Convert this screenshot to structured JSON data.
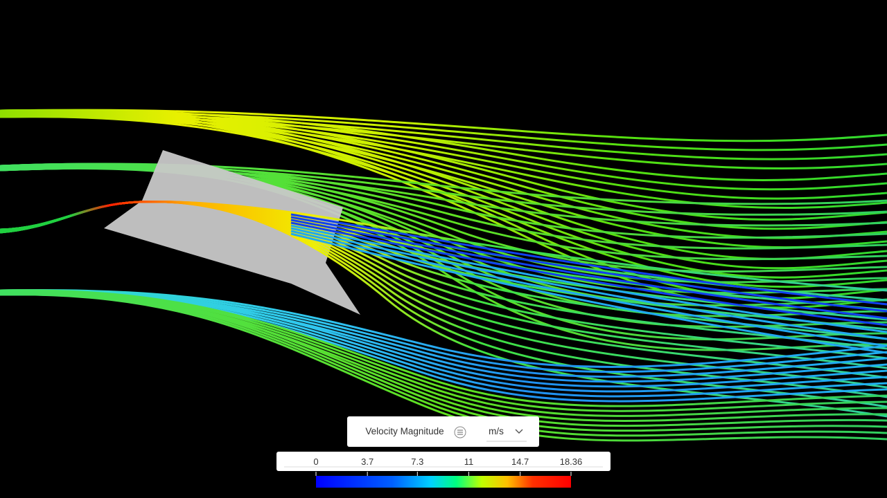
{
  "legend": {
    "title": "Velocity Magnitude",
    "unit": "m/s",
    "ticks": [
      0,
      3.7,
      7.3,
      11,
      14.7,
      18.36
    ]
  }
}
